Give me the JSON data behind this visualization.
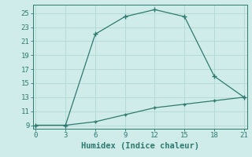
{
  "xlabel": "Humidex (Indice chaleur)",
  "line1_x": [
    0,
    3,
    6,
    9,
    12,
    15,
    18,
    21
  ],
  "line1_y": [
    9,
    9,
    22,
    24.5,
    25.5,
    24.5,
    16,
    13
  ],
  "line2_x": [
    0,
    3,
    6,
    9,
    12,
    15,
    18,
    21
  ],
  "line2_y": [
    9,
    9,
    9.5,
    10.5,
    11.5,
    12,
    12.5,
    13
  ],
  "line_color": "#2d7a6e",
  "bg_color": "#d0ecea",
  "grid_color": "#b0d8d4",
  "xlim": [
    -0.3,
    21.3
  ],
  "ylim": [
    8.5,
    26.2
  ],
  "xticks": [
    0,
    3,
    6,
    9,
    12,
    15,
    18,
    21
  ],
  "yticks": [
    9,
    11,
    13,
    15,
    17,
    19,
    21,
    23,
    25
  ],
  "tick_fontsize": 6.5,
  "xlabel_fontsize": 7.5
}
